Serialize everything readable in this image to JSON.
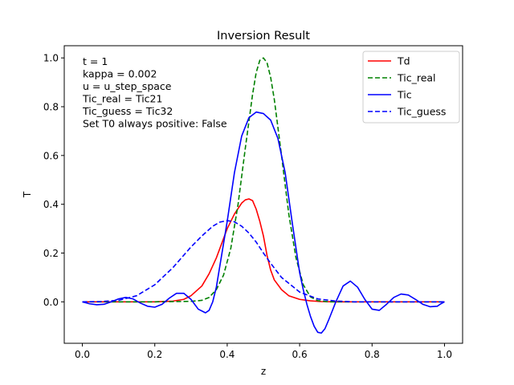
{
  "chart_data": {
    "type": "line",
    "title": "Inversion Result",
    "xlabel": "z",
    "ylabel": "T",
    "xlim": [
      -0.05,
      1.05
    ],
    "ylim": [
      -0.17,
      1.05
    ],
    "xticks": [
      0.0,
      0.2,
      0.4,
      0.6,
      0.8,
      1.0
    ],
    "xtick_labels": [
      "0.0",
      "0.2",
      "0.4",
      "0.6",
      "0.8",
      "1.0"
    ],
    "yticks": [
      0.0,
      0.2,
      0.4,
      0.6,
      0.8,
      1.0
    ],
    "ytick_labels": [
      "0.0",
      "0.2",
      "0.4",
      "0.6",
      "0.8",
      "1.0"
    ],
    "grid": false,
    "legend_position": "top-right",
    "annotations": [
      "t = 1",
      "kappa = 0.002",
      "u = u_step_space",
      "Tic_real = Tic21",
      "Tic_guess = Tic32",
      "Set T0 always positive: False"
    ],
    "series": [
      {
        "name": "Td",
        "color": "#ff0000",
        "dash": "solid",
        "x": [
          0.0,
          0.05,
          0.1,
          0.15,
          0.2,
          0.25,
          0.28,
          0.3,
          0.33,
          0.35,
          0.37,
          0.39,
          0.4,
          0.42,
          0.44,
          0.45,
          0.46,
          0.47,
          0.48,
          0.49,
          0.5,
          0.51,
          0.52,
          0.53,
          0.55,
          0.57,
          0.6,
          0.63,
          0.66,
          0.7,
          0.8,
          0.9,
          1.0
        ],
        "y": [
          0.0,
          0.0,
          0.0,
          0.0,
          0.0,
          0.003,
          0.01,
          0.025,
          0.065,
          0.115,
          0.18,
          0.26,
          0.3,
          0.36,
          0.405,
          0.418,
          0.422,
          0.415,
          0.38,
          0.33,
          0.27,
          0.19,
          0.13,
          0.09,
          0.05,
          0.025,
          0.01,
          0.004,
          0.001,
          0.0,
          0.0,
          0.0,
          0.0
        ]
      },
      {
        "name": "Tic_real",
        "color": "#008000",
        "dash": "dashed",
        "x": [
          0.0,
          0.1,
          0.2,
          0.3,
          0.33,
          0.35,
          0.37,
          0.39,
          0.41,
          0.43,
          0.45,
          0.47,
          0.48,
          0.49,
          0.5,
          0.51,
          0.52,
          0.53,
          0.55,
          0.57,
          0.59,
          0.61,
          0.63,
          0.65,
          0.68,
          0.7,
          0.8,
          1.0
        ],
        "y": [
          0.0,
          0.0,
          0.0,
          0.002,
          0.006,
          0.018,
          0.05,
          0.11,
          0.22,
          0.4,
          0.63,
          0.85,
          0.94,
          0.99,
          1.0,
          0.98,
          0.92,
          0.83,
          0.6,
          0.36,
          0.18,
          0.07,
          0.02,
          0.005,
          0.0,
          0.0,
          0.0,
          0.0
        ]
      },
      {
        "name": "Tic",
        "color": "#0000ff",
        "dash": "solid",
        "x": [
          0.0,
          0.02,
          0.04,
          0.06,
          0.08,
          0.1,
          0.12,
          0.14,
          0.16,
          0.18,
          0.2,
          0.22,
          0.24,
          0.26,
          0.28,
          0.3,
          0.32,
          0.34,
          0.35,
          0.36,
          0.37,
          0.38,
          0.4,
          0.42,
          0.44,
          0.46,
          0.48,
          0.5,
          0.52,
          0.54,
          0.56,
          0.58,
          0.6,
          0.61,
          0.62,
          0.63,
          0.64,
          0.65,
          0.66,
          0.67,
          0.68,
          0.7,
          0.72,
          0.74,
          0.76,
          0.78,
          0.8,
          0.82,
          0.84,
          0.86,
          0.88,
          0.9,
          0.92,
          0.94,
          0.96,
          0.98,
          0.99,
          1.0
        ],
        "y": [
          0.0,
          -0.008,
          -0.012,
          -0.01,
          0.0,
          0.012,
          0.018,
          0.012,
          -0.005,
          -0.018,
          -0.022,
          -0.01,
          0.015,
          0.035,
          0.035,
          0.01,
          -0.03,
          -0.045,
          -0.035,
          0.0,
          0.06,
          0.15,
          0.33,
          0.53,
          0.68,
          0.755,
          0.778,
          0.772,
          0.745,
          0.67,
          0.53,
          0.32,
          0.12,
          0.05,
          -0.01,
          -0.06,
          -0.1,
          -0.125,
          -0.128,
          -0.11,
          -0.075,
          0.0,
          0.065,
          0.085,
          0.06,
          0.01,
          -0.03,
          -0.035,
          -0.01,
          0.018,
          0.032,
          0.028,
          0.01,
          -0.01,
          -0.02,
          -0.018,
          -0.008,
          0.0
        ]
      },
      {
        "name": "Tic_guess",
        "color": "#0000ff",
        "dash": "dashed",
        "x": [
          0.0,
          0.05,
          0.1,
          0.15,
          0.2,
          0.25,
          0.3,
          0.33,
          0.36,
          0.38,
          0.4,
          0.42,
          0.44,
          0.46,
          0.48,
          0.5,
          0.52,
          0.55,
          0.6,
          0.65,
          0.7,
          0.75,
          0.8,
          0.9,
          1.0
        ],
        "y": [
          0.0,
          0.001,
          0.006,
          0.025,
          0.07,
          0.14,
          0.225,
          0.27,
          0.31,
          0.327,
          0.333,
          0.328,
          0.31,
          0.282,
          0.245,
          0.2,
          0.158,
          0.1,
          0.04,
          0.012,
          0.003,
          0.0,
          0.0,
          0.0,
          0.0
        ]
      }
    ]
  }
}
